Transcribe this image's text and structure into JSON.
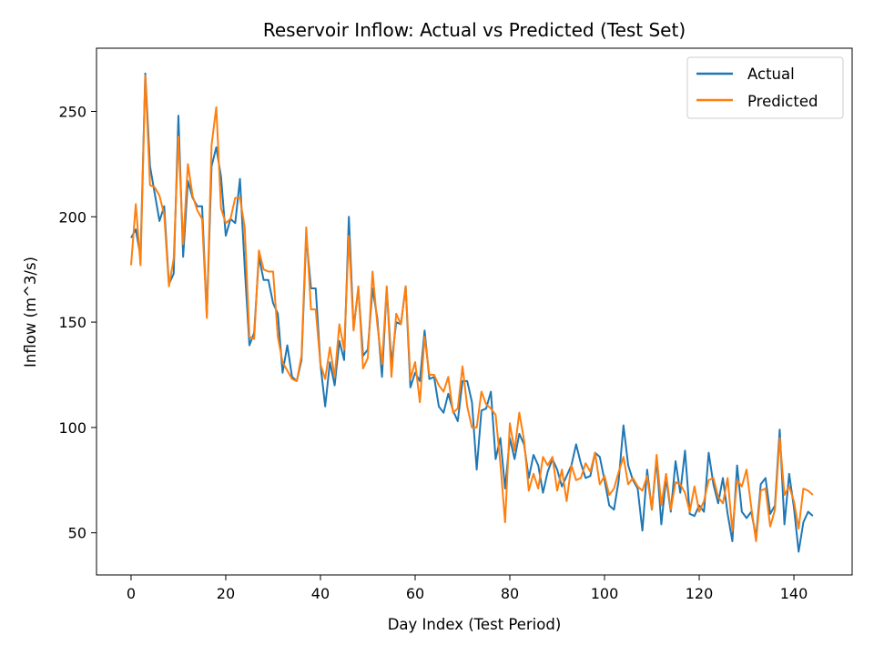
{
  "chart_data": {
    "type": "line",
    "title": "Reservoir Inflow: Actual vs Predicted (Test Set)",
    "xlabel": "Day Index (Test Period)",
    "ylabel": "Inflow (m^3/s)",
    "xlim": [
      -7.3,
      152.3
    ],
    "ylim": [
      30,
      280
    ],
    "xticks": [
      0,
      20,
      40,
      60,
      80,
      100,
      120,
      140
    ],
    "yticks": [
      50,
      100,
      150,
      200,
      250
    ],
    "grid": false,
    "legend_position": "top-right",
    "series": [
      {
        "name": "Actual",
        "color": "#1f77b4",
        "values": [
          190,
          194,
          181,
          268,
          224,
          211,
          198,
          205,
          168,
          173,
          248,
          181,
          217,
          209,
          205,
          205,
          153,
          224,
          233,
          219,
          191,
          199,
          197,
          218,
          176,
          139,
          145,
          181,
          170,
          170,
          159,
          154,
          126,
          139,
          124,
          122,
          132,
          191,
          166,
          166,
          130,
          110,
          131,
          120,
          141,
          132,
          200,
          147,
          166,
          134,
          137,
          166,
          152,
          124,
          166,
          130,
          150,
          149,
          167,
          119,
          126,
          122,
          146,
          123,
          124,
          110,
          107,
          116,
          108,
          103,
          122,
          122,
          112,
          80,
          108,
          109,
          117,
          85,
          95,
          71,
          95,
          85,
          97,
          92,
          76,
          87,
          82,
          69,
          79,
          85,
          80,
          72,
          77,
          82,
          92,
          83,
          76,
          77,
          88,
          86,
          75,
          63,
          61,
          75,
          101,
          82,
          75,
          71,
          51,
          80,
          61,
          85,
          54,
          76,
          60,
          84,
          69,
          89,
          59,
          58,
          63,
          60,
          88,
          73,
          64,
          76,
          59,
          46,
          82,
          60,
          57,
          60,
          48,
          73,
          76,
          59,
          63,
          99,
          54,
          78,
          62,
          41,
          55,
          60,
          58
        ],
        "line_width": 2
      },
      {
        "name": "Predicted",
        "color": "#ff7f0e",
        "values": [
          177,
          206,
          177,
          267,
          215,
          214,
          210,
          201,
          167,
          180,
          238,
          187,
          225,
          210,
          203,
          199,
          152,
          234,
          252,
          204,
          197,
          199,
          209,
          209,
          195,
          143,
          142,
          184,
          175,
          174,
          174,
          143,
          131,
          127,
          123,
          122,
          134,
          195,
          156,
          156,
          130,
          123,
          138,
          124,
          149,
          137,
          191,
          146,
          167,
          128,
          133,
          174,
          149,
          130,
          167,
          124,
          154,
          149,
          167,
          123,
          131,
          112,
          143,
          125,
          125,
          120,
          117,
          124,
          107,
          109,
          129,
          110,
          100,
          100,
          117,
          111,
          109,
          106,
          83,
          55,
          102,
          89,
          107,
          94,
          70,
          78,
          71,
          86,
          82,
          86,
          70,
          80,
          65,
          82,
          75,
          76,
          83,
          79,
          88,
          73,
          77,
          68,
          71,
          79,
          86,
          73,
          76,
          72,
          70,
          77,
          61,
          87,
          63,
          78,
          61,
          74,
          73,
          69,
          60,
          72,
          60,
          65,
          75,
          76,
          67,
          64,
          76,
          51,
          75,
          72,
          80,
          62,
          46,
          70,
          71,
          53,
          61,
          95,
          68,
          72,
          65,
          52,
          71,
          70,
          68
        ],
        "line_width": 2
      }
    ]
  }
}
